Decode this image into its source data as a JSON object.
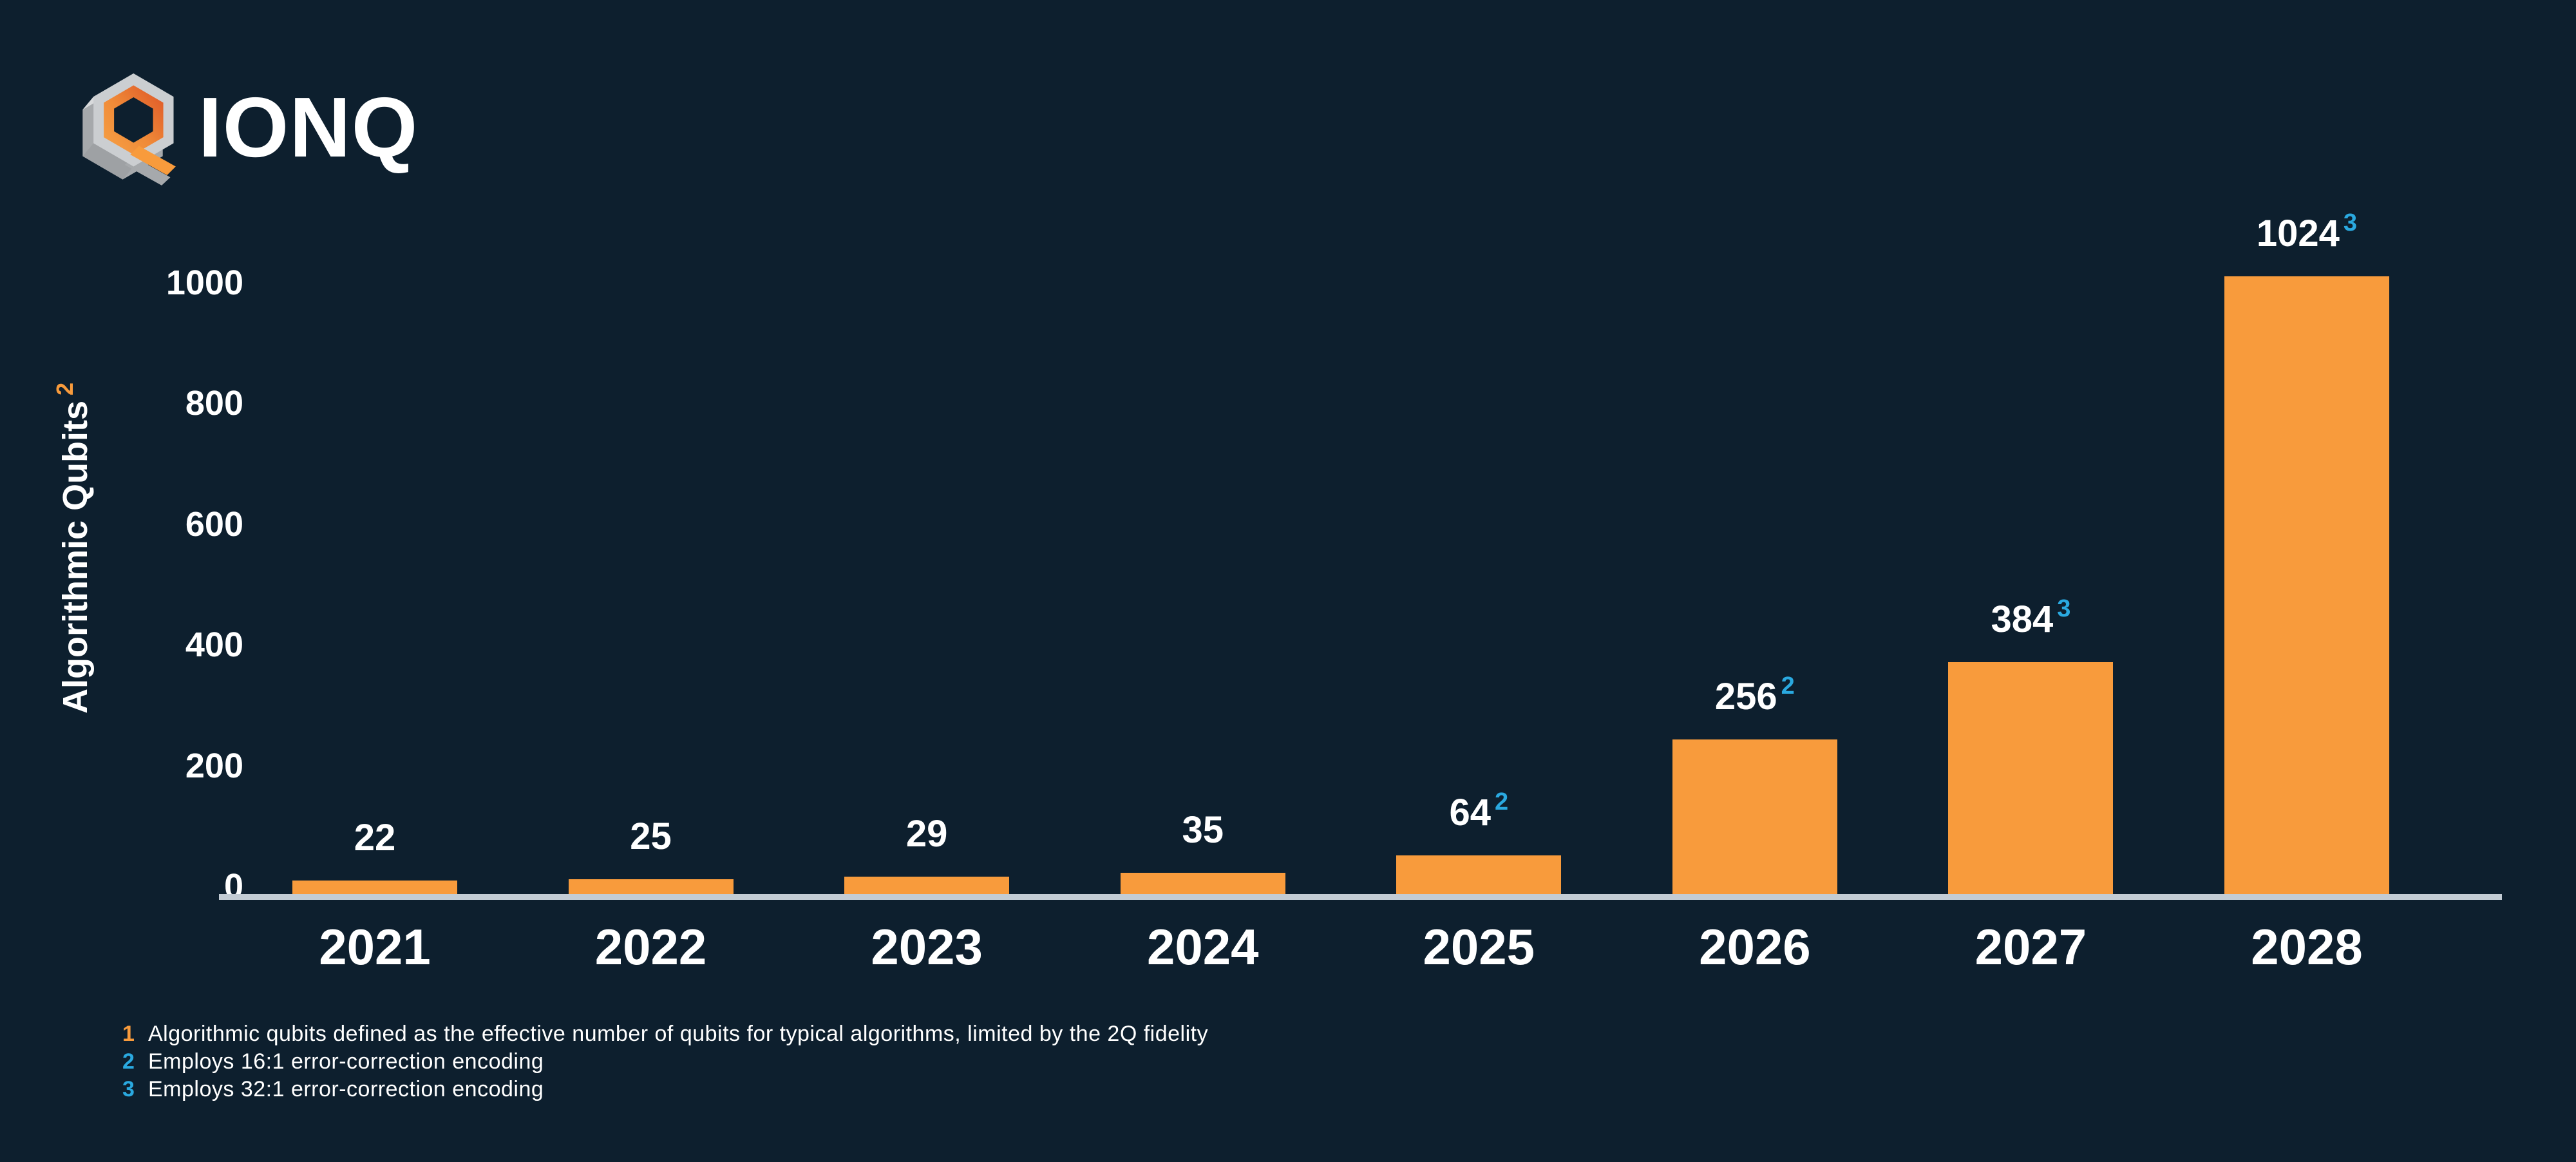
{
  "brand": {
    "name": "IONQ",
    "icon": "ionq-hexagon-q-icon"
  },
  "chart_data": {
    "type": "bar",
    "title": "",
    "xlabel": "",
    "ylabel": "Algorithmic Qubits",
    "ylabel_footnote_ref": "2",
    "categories": [
      "2021",
      "2022",
      "2023",
      "2024",
      "2025",
      "2026",
      "2027",
      "2028"
    ],
    "values": [
      22,
      25,
      29,
      35,
      64,
      256,
      384,
      1024
    ],
    "value_footnote_refs": [
      "",
      "",
      "",
      "",
      "2",
      "2",
      "3",
      "3"
    ],
    "yticks": [
      0,
      200,
      400,
      600,
      800,
      1000
    ],
    "ylim": [
      0,
      1090
    ],
    "grid": false,
    "legend_position": "none",
    "colors": {
      "background": "#0D1F2E",
      "bar": "#F89B3C",
      "axis_line": "#C3CCD4",
      "text": "#FFFFFF",
      "footnote_ref_blue": "#2AA9E0",
      "footnote_ref_orange": "#F89B3C"
    }
  },
  "footnotes": [
    {
      "marker": "1",
      "color": "orange",
      "text": "Algorithmic qubits defined as the effective number of qubits for typical algorithms, limited by the 2Q fidelity"
    },
    {
      "marker": "2",
      "color": "blue",
      "text": "Employs 16:1 error-correction encoding"
    },
    {
      "marker": "3",
      "color": "blue",
      "text": "Employs 32:1 error-correction encoding"
    }
  ]
}
